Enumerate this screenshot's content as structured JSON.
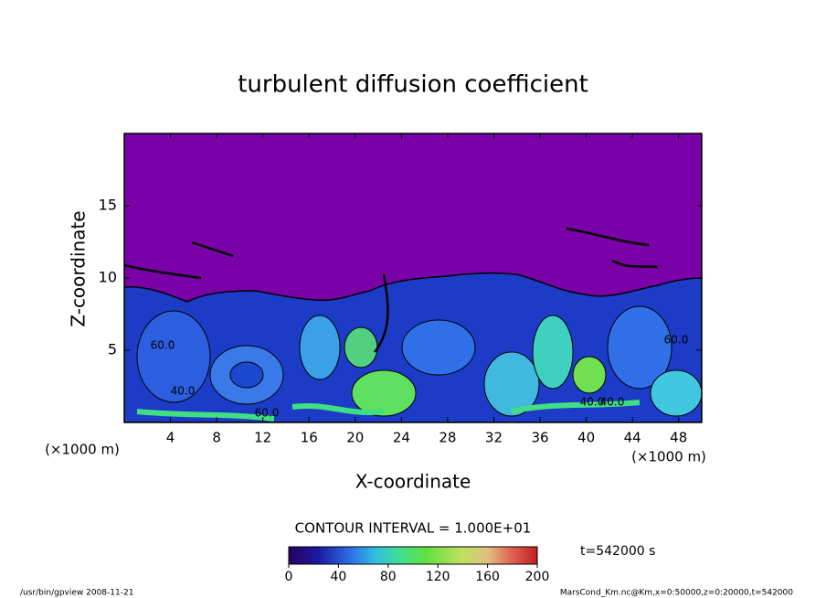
{
  "chart_data": {
    "type": "contour",
    "title": "turbulent diffusion coefficient",
    "x_label": "X-coordinate",
    "y_label": "Z-coordinate",
    "x_unit_label": "(×1000 m)",
    "y_unit_label": "(×1000 m)",
    "xlim": [
      0,
      50
    ],
    "xticks": [
      4,
      8,
      12,
      16,
      20,
      24,
      28,
      32,
      36,
      40,
      44,
      48
    ],
    "ylim": [
      0,
      20
    ],
    "yticks": [
      5,
      10,
      15
    ],
    "contour_interval": "CONTOUR INTERVAL = 1.000E+01",
    "contour_labels": [
      "60.0",
      "40.0",
      "60.0",
      "40.0",
      "40.0",
      "60.0"
    ],
    "time_label": "t=542000 s",
    "colorbar": {
      "lim": [
        0,
        200
      ],
      "ticks": [
        0,
        40,
        80,
        120,
        160,
        200
      ]
    },
    "footer_left": "/usr/bin/gpview  2008-11-21",
    "footer_right": "MarsCond_Km.nc@Km,x=0:50000,z=0:20000,t=542000"
  }
}
